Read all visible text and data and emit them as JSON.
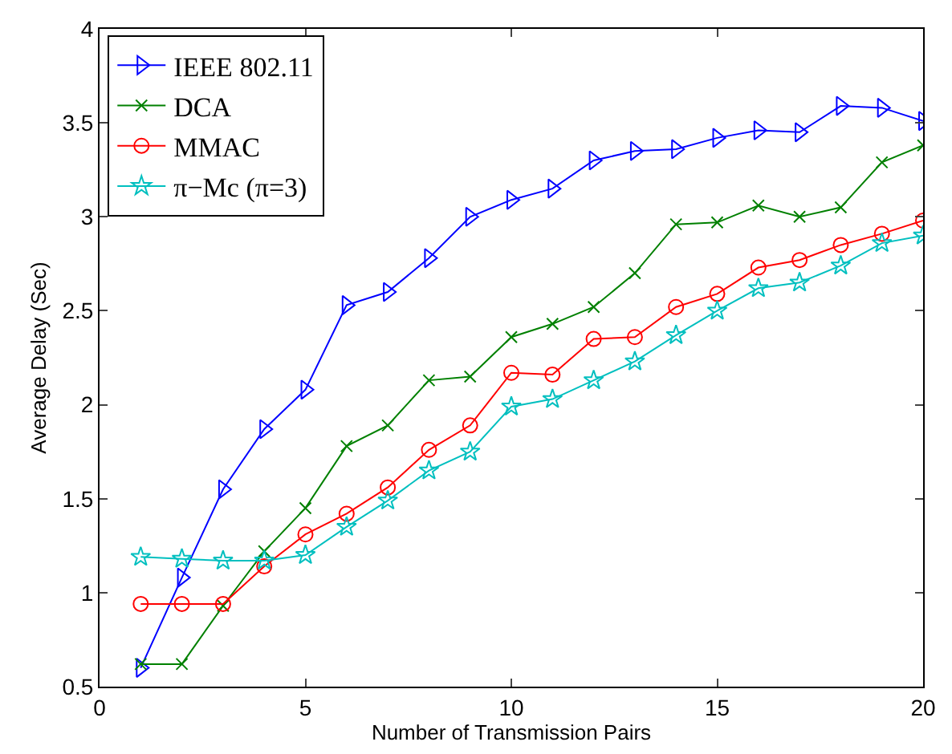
{
  "chart_data": {
    "type": "line",
    "xlabel": "Number of Transmission Pairs",
    "ylabel": "Average Delay (Sec)",
    "x": [
      1,
      2,
      3,
      4,
      5,
      6,
      7,
      8,
      9,
      10,
      11,
      12,
      13,
      14,
      15,
      16,
      17,
      18,
      19,
      20
    ],
    "xlim": [
      0,
      20
    ],
    "xticks": [
      0,
      5,
      10,
      15,
      20
    ],
    "ylim": [
      0.5,
      4
    ],
    "yticks": [
      0.5,
      1,
      1.5,
      2,
      2.5,
      3,
      3.5,
      4
    ],
    "grid": false,
    "legend": "top left",
    "line_style": "solid",
    "series": [
      {
        "name": "IEEE 802.11",
        "color": "#0000ff",
        "marker": "triangle",
        "values": [
          0.6,
          1.08,
          1.55,
          1.87,
          2.08,
          2.53,
          2.6,
          2.78,
          3.0,
          3.09,
          3.15,
          3.3,
          3.35,
          3.36,
          3.42,
          3.46,
          3.45,
          3.59,
          3.58,
          3.51
        ]
      },
      {
        "name": "DCA",
        "color": "#008000",
        "marker": "cross",
        "values": [
          0.62,
          0.62,
          0.93,
          1.22,
          1.45,
          1.78,
          1.89,
          2.13,
          2.15,
          2.36,
          2.43,
          2.52,
          2.7,
          2.96,
          2.97,
          3.06,
          3.0,
          3.05,
          3.29,
          3.38
        ]
      },
      {
        "name": "MMAC",
        "color": "#ff0000",
        "marker": "circle",
        "values": [
          0.94,
          0.94,
          0.94,
          1.14,
          1.31,
          1.42,
          1.56,
          1.76,
          1.89,
          2.17,
          2.16,
          2.35,
          2.36,
          2.52,
          2.59,
          2.73,
          2.77,
          2.85,
          2.91,
          2.98
        ]
      },
      {
        "name": "π−Mc (π=3)",
        "color": "#00bfbf",
        "marker": "star",
        "values": [
          1.19,
          1.18,
          1.17,
          1.17,
          1.2,
          1.35,
          1.49,
          1.65,
          1.75,
          1.99,
          2.03,
          2.13,
          2.23,
          2.37,
          2.5,
          2.62,
          2.65,
          2.74,
          2.86,
          2.9
        ]
      }
    ]
  }
}
